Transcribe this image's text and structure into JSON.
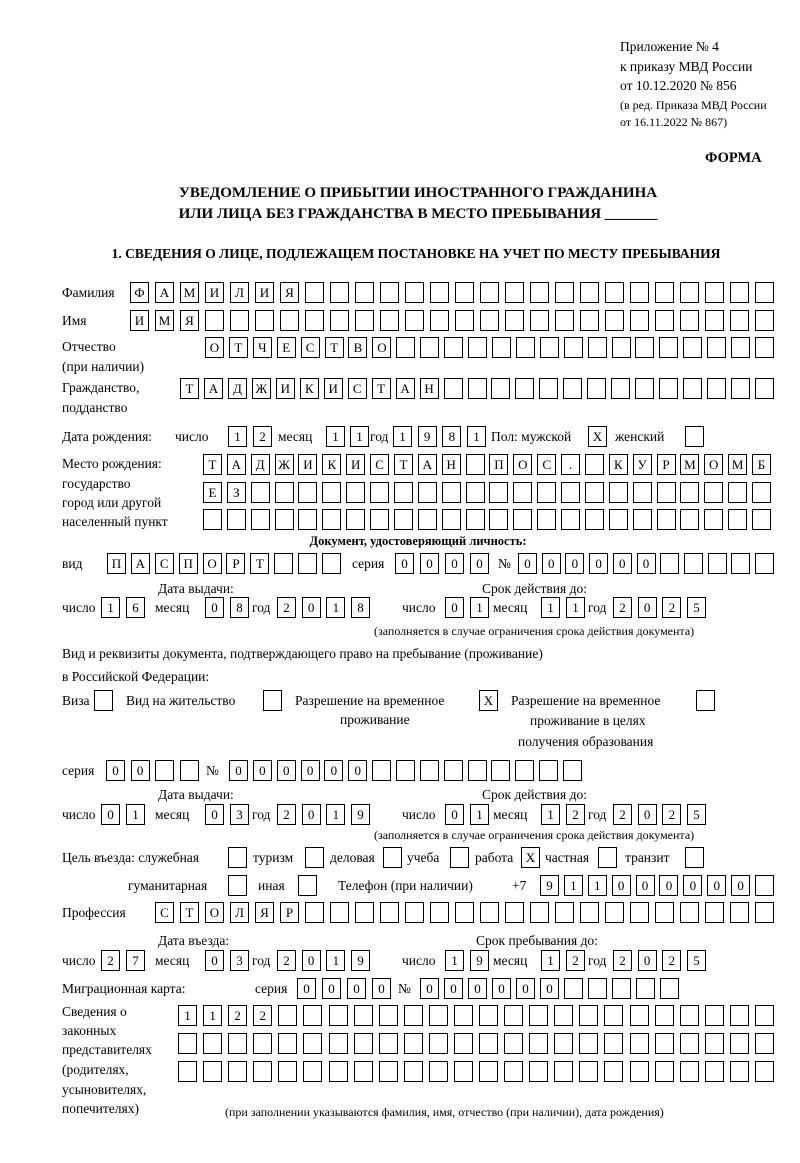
{
  "header": {
    "appendix": [
      "Приложение № 4",
      "к приказу МВД России",
      "от 10.12.2020 № 856"
    ],
    "edition": [
      "(в ред. Приказа МВД России",
      "от 16.11.2022 № 867)"
    ],
    "form_label": "ФОРМА",
    "title_line1": "УВЕДОМЛЕНИЕ О ПРИБЫТИИ ИНОСТРАННОГО ГРАЖДАНИНА",
    "title_line2": "ИЛИ ЛИЦА БЕЗ ГРАЖДАНСТВА В МЕСТО ПРЕБЫВАНИЯ _______"
  },
  "section1": {
    "heading": "1. СВЕДЕНИЯ О ЛИЦЕ, ПОДЛЕЖАЩЕМ ПОСТАНОВКЕ НА УЧЕТ ПО МЕСТУ ПРЕБЫВАНИЯ",
    "labels": {
      "surname": "Фамилия",
      "name": "Имя",
      "patronymic": "Отчество",
      "patronymic_note": "(при наличии)",
      "citizenship": "Гражданство,",
      "citizenship2": "подданство",
      "birth_date": "Дата рождения:",
      "day": "число",
      "month": "месяц",
      "year": "год",
      "sex_male": "Пол: мужской",
      "sex_female": "женский",
      "birthplace": [
        "Место рождения:",
        "государство",
        "город или другой",
        "населенный пункт"
      ],
      "id_doc_heading": "Документ, удостоверяющий личность:",
      "kind": "вид",
      "series": "серия",
      "number": "№",
      "issue_date": "Дата выдачи:",
      "valid_until": "Срок действия до:",
      "validity_note": "(заполняется в случае ограничения срока действия документа)",
      "residence_doc": "Вид и реквизиты документа, подтверждающего право на пребывание (проживание)",
      "residence_doc2": "в Российской Федерации:",
      "visa": "Виза",
      "residence_permit": "Вид на жительство",
      "temp_residence": [
        "Разрешение на временное",
        "проживание"
      ],
      "temp_residence_edu": [
        "Разрешение на временное",
        "проживание в целях",
        "получения образования"
      ],
      "purpose": "Цель въезда: служебная",
      "tourism": "туризм",
      "business": "деловая",
      "study": "учеба",
      "work": "работа",
      "private": "частная",
      "transit": "транзит",
      "humanitarian": "гуманитарная",
      "other": "иная",
      "phone": "Телефон (при наличии)",
      "phone_prefix": "+7",
      "profession": "Профессия",
      "entry_date": "Дата въезда:",
      "stay_until": "Срок пребывания до:",
      "migration_card": "Миграционная карта:",
      "representatives": [
        "Сведения о",
        "законных",
        "представителях",
        "(родителях,",
        "усыновителях,",
        "попечителях)"
      ],
      "representatives_note": "(при заполнении указываются фамилия, имя, отчество (при наличии), дата рождения)"
    },
    "values": {
      "surname": "ФАМИЛИЯ",
      "name": "ИМЯ",
      "patronymic": "ОТЧЕСТВО",
      "citizenship": "ТАДЖИКИСТАН",
      "birth_day": "12",
      "birth_month": "11",
      "birth_year": "1981",
      "sex_male": "X",
      "sex_female": "",
      "birthplace_1": "ТАДЖИКИСТАН ПОС. КУРМОМБ",
      "birthplace_2": "ЕЗ",
      "birthplace_3": "",
      "id_kind": "ПАСПОРТ",
      "id_series": "0000",
      "id_number": "000000",
      "id_issue_day": "16",
      "id_issue_month": "08",
      "id_issue_year": "2018",
      "id_valid_day": "01",
      "id_valid_month": "11",
      "id_valid_year": "2025",
      "visa": "",
      "residence_permit": "",
      "temp_residence": "X",
      "temp_residence_edu": "",
      "res_series": "00",
      "res_number": "000000",
      "res_issue_day": "01",
      "res_issue_month": "03",
      "res_issue_year": "2019",
      "res_valid_day": "01",
      "res_valid_month": "12",
      "res_valid_year": "2025",
      "purpose_official": "",
      "purpose_tourism": "",
      "purpose_business": "",
      "purpose_study": "",
      "purpose_work": "X",
      "purpose_private": "",
      "purpose_transit": "",
      "purpose_humanitarian": "",
      "purpose_other": "",
      "phone": "911000000",
      "profession": "СТОЛЯР",
      "entry_day": "27",
      "entry_month": "03",
      "entry_year": "2019",
      "stay_day": "19",
      "stay_month": "12",
      "stay_year": "2025",
      "mig_series": "0000",
      "mig_number": "000000",
      "rep_1": "1122",
      "rep_2": "",
      "rep_3": ""
    }
  }
}
